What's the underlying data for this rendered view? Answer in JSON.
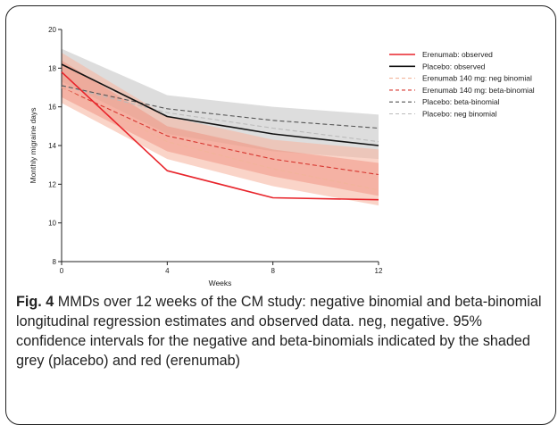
{
  "chart_data": {
    "type": "line",
    "xlabel": "Weeks",
    "ylabel": "Monthly migraine days",
    "x": [
      0,
      4,
      8,
      12
    ],
    "xticks": [
      0,
      4,
      8,
      12
    ],
    "yticks": [
      8,
      10,
      12,
      14,
      16,
      18,
      20
    ],
    "xlim": [
      0,
      12
    ],
    "ylim": [
      8,
      20
    ],
    "grid": false,
    "legend_position": "top-right",
    "series": [
      {
        "name": "Erenumab: observed",
        "values": [
          17.8,
          12.7,
          11.3,
          11.2
        ],
        "color": "#e8242b",
        "dash": "solid",
        "width": 1.6
      },
      {
        "name": "Placebo: observed",
        "values": [
          18.2,
          15.5,
          14.6,
          14.0
        ],
        "color": "#111111",
        "dash": "solid",
        "width": 1.6
      },
      {
        "name": "Erenumab 140 mg: neg binomial",
        "values": [
          17.0,
          14.2,
          12.8,
          11.7
        ],
        "color": "#f2b49b",
        "dash": "dash",
        "width": 1.1
      },
      {
        "name": "Erenumab 140 mg: beta-binomial",
        "values": [
          17.0,
          14.5,
          13.3,
          12.5
        ],
        "color": "#d7362f",
        "dash": "dash",
        "width": 1.1
      },
      {
        "name": "Placebo: beta-binomial",
        "values": [
          17.1,
          15.9,
          15.3,
          14.9
        ],
        "color": "#555555",
        "dash": "dash",
        "width": 1.1
      },
      {
        "name": "Placebo: neg binomial",
        "values": [
          17.1,
          15.7,
          14.9,
          14.2
        ],
        "color": "#bbbbbb",
        "dash": "dash",
        "width": 1.1
      }
    ],
    "bands": [
      {
        "group": "placebo",
        "lower": [
          17.3,
          14.6,
          13.7,
          13.3
        ],
        "upper": [
          19.0,
          16.6,
          16.0,
          15.6
        ],
        "color": "#d4d4d4",
        "opacity": 0.8
      },
      {
        "group": "erenumab",
        "lower": [
          16.2,
          13.3,
          11.9,
          10.9
        ],
        "upper": [
          18.8,
          15.5,
          14.3,
          13.8
        ],
        "color": "#f6b8a4",
        "opacity": 0.6
      },
      {
        "group": "erenumab",
        "lower": [
          16.5,
          13.7,
          12.4,
          11.4
        ],
        "upper": [
          18.4,
          15.0,
          13.8,
          13.1
        ],
        "color": "#ef8a78",
        "opacity": 0.45
      }
    ]
  },
  "caption": {
    "label": "Fig. 4",
    "text": " MMDs over 12 weeks of the CM study: negative binomial and beta-binomial longitudinal regression estimates and observed data. neg, negative. 95% confidence intervals for the negative and beta-binomials indicated by the shaded grey (placebo) and red (erenumab)"
  }
}
